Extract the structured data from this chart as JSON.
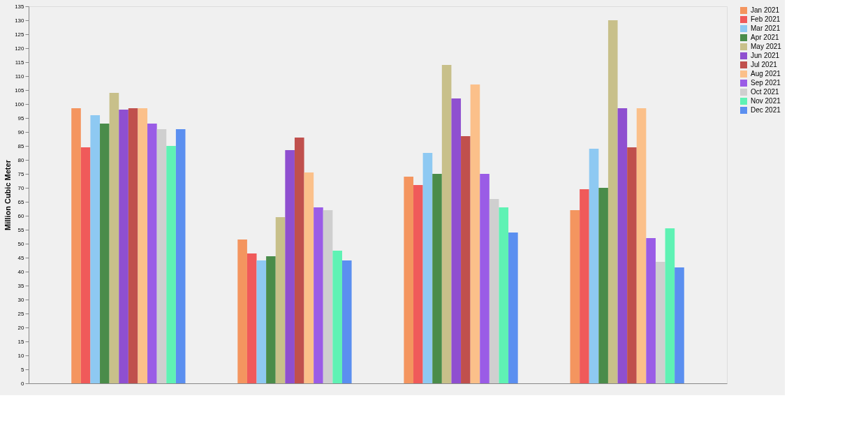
{
  "chart_data": {
    "type": "bar",
    "ylabel": "Million Cubic Meter",
    "categories": [
      null,
      null,
      null,
      null
    ],
    "ylim": [
      0,
      135
    ],
    "yticks": [
      0,
      5,
      10,
      15,
      20,
      25,
      30,
      35,
      40,
      45,
      50,
      55,
      60,
      65,
      70,
      75,
      80,
      85,
      90,
      95,
      100,
      105,
      110,
      115,
      120,
      125,
      130,
      135
    ],
    "grid": false,
    "legend": "top right",
    "series": [
      {
        "name": "Jan 2021",
        "color": "#f4955f",
        "values": [
          98.5,
          51.5,
          74,
          62
        ]
      },
      {
        "name": "Feb 2021",
        "color": "#f05a5a",
        "values": [
          84.5,
          46.5,
          71,
          69.5
        ]
      },
      {
        "name": "Mar 2021",
        "color": "#8ec9f2",
        "values": [
          96,
          44,
          82.5,
          84
        ]
      },
      {
        "name": "Apr 2021",
        "color": "#4a8c4a",
        "values": [
          93,
          45.5,
          75,
          70
        ]
      },
      {
        "name": "May 2021",
        "color": "#c8c08a",
        "values": [
          104,
          59.5,
          114,
          130
        ]
      },
      {
        "name": "Jun 2021",
        "color": "#8f4fd0",
        "values": [
          98,
          83.5,
          102,
          98.5
        ]
      },
      {
        "name": "Jul 2021",
        "color": "#c0504d",
        "values": [
          98.5,
          88,
          88.5,
          84.5
        ]
      },
      {
        "name": "Aug 2021",
        "color": "#fbc08a",
        "values": [
          98.5,
          75.5,
          107,
          98.5
        ]
      },
      {
        "name": "Sep 2021",
        "color": "#9a5ce6",
        "values": [
          93,
          63,
          75,
          52
        ]
      },
      {
        "name": "Oct 2021",
        "color": "#cfcfcf",
        "values": [
          91,
          62,
          66,
          43.5
        ]
      },
      {
        "name": "Nov 2021",
        "color": "#5ff2b4",
        "values": [
          85,
          47.5,
          63,
          55.5
        ]
      },
      {
        "name": "Dec 2021",
        "color": "#5b8ff0",
        "values": [
          91,
          44,
          54,
          41.5
        ]
      }
    ]
  }
}
